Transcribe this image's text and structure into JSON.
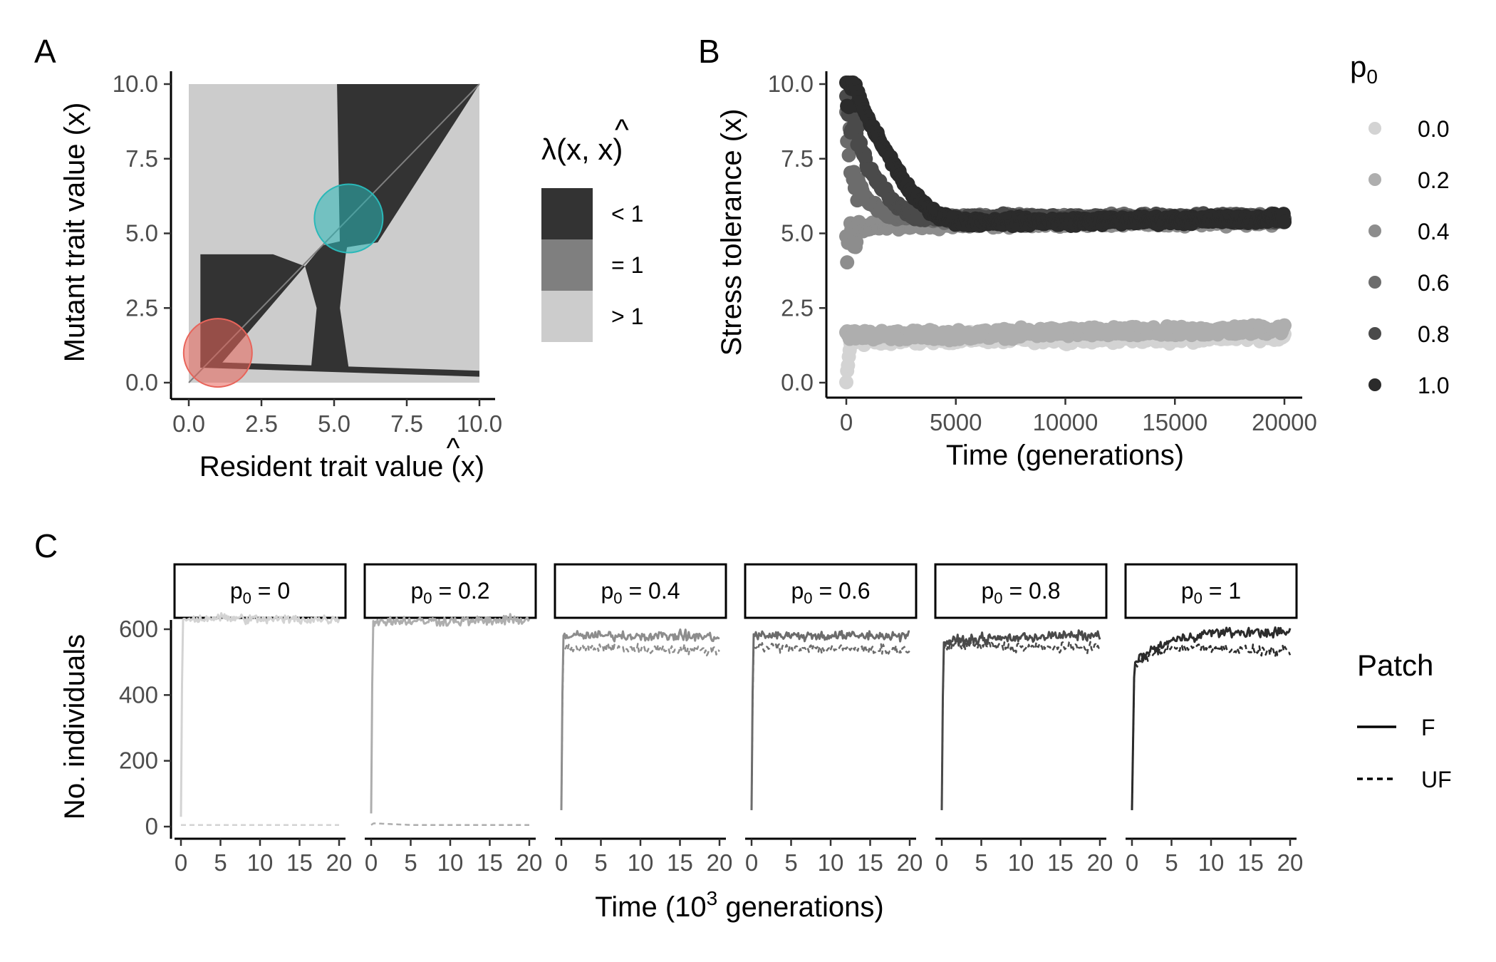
{
  "colors": {
    "p0": [
      "#d3d3d3",
      "#aeaeae",
      "#8d8d8d",
      "#6c6c6c",
      "#4a4a4a",
      "#2b2b2b"
    ],
    "pip": {
      "lt1": "#333333",
      "eq1": "#7f7f7f",
      "gt1": "#cccccc"
    },
    "red_circle": "#e8645a",
    "cyan_circle": "#2ab8b8",
    "axis": "#000000",
    "tick_text": "#4d4d4d"
  },
  "panels": {
    "a": "A",
    "b": "B",
    "c": "C"
  },
  "panel_a": {
    "xlabel_pre": "Resident trait value (",
    "xlabel_var": "x",
    "xlabel_hat": "^",
    "xlabel_post": ")",
    "ylabel": "Mutant trait value (x)",
    "xticks": [
      "0.0",
      "2.5",
      "5.0",
      "7.5",
      "10.0"
    ],
    "yticks": [
      "0.0",
      "2.5",
      "5.0",
      "7.5",
      "10.0"
    ],
    "legend": {
      "title_pre": "λ(x, ",
      "title_var": "x",
      "title_hat": "^",
      "title_post": ")",
      "items": [
        "< 1",
        "= 1",
        "> 1"
      ]
    }
  },
  "panel_b": {
    "xlabel": "Time (generations)",
    "ylabel": "Stress tolerance (x)",
    "xticks": [
      "0",
      "5000",
      "10000",
      "15000",
      "20000"
    ],
    "yticks": [
      "0.0",
      "2.5",
      "5.0",
      "7.5",
      "10.0"
    ],
    "legend": {
      "title_main": "p",
      "title_sub": "0",
      "items": [
        "0.0",
        "0.2",
        "0.4",
        "0.6",
        "0.8",
        "1.0"
      ]
    }
  },
  "panel_c": {
    "xlabel_pre": "Time (10",
    "xlabel_sup": "3",
    "xlabel_post": " generations)",
    "ylabel": "No. individuals",
    "xticks": [
      "0",
      "5",
      "10",
      "15",
      "20"
    ],
    "yticks": [
      "0",
      "200",
      "400",
      "600"
    ],
    "facets": [
      {
        "main": "p",
        "sub": "0",
        "rest": " = 0"
      },
      {
        "main": "p",
        "sub": "0",
        "rest": " = 0.2"
      },
      {
        "main": "p",
        "sub": "0",
        "rest": " = 0.4"
      },
      {
        "main": "p",
        "sub": "0",
        "rest": " = 0.6"
      },
      {
        "main": "p",
        "sub": "0",
        "rest": " = 0.8"
      },
      {
        "main": "p",
        "sub": "0",
        "rest": " = 1"
      }
    ],
    "legend": {
      "title": "Patch",
      "items": [
        "F",
        "UF"
      ]
    }
  },
  "chart_data": [
    {
      "type": "heatmap",
      "panel": "A",
      "xlabel": "Resident trait value (x̂)",
      "ylabel": "Mutant trait value (x)",
      "xlim": [
        0,
        10
      ],
      "ylim": [
        0,
        10
      ],
      "legend_title": "λ(x, x̂)",
      "classes": [
        "< 1",
        "= 1",
        "> 1"
      ],
      "regions_lt1": [
        {
          "x": [
            0.4,
            3.0
          ],
          "y": [
            0.2,
            4.3
          ],
          "note": "lower-left wedge around diagonal"
        },
        {
          "x": [
            5.2,
            10.0
          ],
          "y": [
            5.0,
            10.0
          ],
          "note": "upper-right wedge around diagonal"
        },
        {
          "x": [
            4.2,
            5.6
          ],
          "y": [
            0.2,
            4.6
          ],
          "note": "vertical stem"
        },
        {
          "x": [
            0.4,
            10.0
          ],
          "y": [
            0.2,
            0.5
          ],
          "note": "bottom strip"
        }
      ],
      "markers": [
        {
          "x": 1.0,
          "y": 1.0,
          "color": "red"
        },
        {
          "x": 5.5,
          "y": 5.5,
          "color": "cyan"
        }
      ]
    },
    {
      "type": "scatter",
      "panel": "B",
      "xlabel": "Time (generations)",
      "ylabel": "Stress tolerance (x)",
      "xlim": [
        0,
        20000
      ],
      "ylim": [
        0,
        10
      ],
      "legend_title": "p0",
      "series": [
        {
          "name": "0.0",
          "x": [
            0,
            200,
            1000,
            5000,
            10000,
            15000,
            20000
          ],
          "y": [
            0.0,
            1.4,
            1.4,
            1.5,
            1.5,
            1.5,
            1.6
          ]
        },
        {
          "name": "0.2",
          "x": [
            0,
            200,
            1000,
            5000,
            10000,
            15000,
            20000
          ],
          "y": [
            1.7,
            1.6,
            1.6,
            1.6,
            1.7,
            1.7,
            1.8
          ]
        },
        {
          "name": "0.4",
          "x": [
            0,
            200,
            1000,
            2000,
            5000,
            10000,
            20000
          ],
          "y": [
            4.5,
            5.0,
            5.2,
            5.3,
            5.3,
            5.4,
            5.4
          ]
        },
        {
          "name": "0.6",
          "x": [
            0,
            500,
            1000,
            2000,
            5000,
            10000,
            20000
          ],
          "y": [
            8.5,
            6.8,
            6.0,
            5.6,
            5.5,
            5.5,
            5.5
          ]
        },
        {
          "name": "0.8",
          "x": [
            0,
            500,
            1000,
            2000,
            3000,
            5000,
            20000
          ],
          "y": [
            9.5,
            8.2,
            7.2,
            6.2,
            5.6,
            5.5,
            5.5
          ]
        },
        {
          "name": "1.0",
          "x": [
            0,
            500,
            1000,
            2000,
            3000,
            4000,
            5000,
            10000,
            20000
          ],
          "y": [
            10.0,
            9.7,
            8.8,
            7.5,
            6.3,
            5.7,
            5.4,
            5.4,
            5.5
          ]
        }
      ]
    },
    {
      "type": "line",
      "panel": "C",
      "xlabel": "Time (10^3 generations)",
      "ylabel": "No. individuals",
      "xlim": [
        0,
        20
      ],
      "ylim": [
        0,
        720
      ],
      "facets": [
        "p0 = 0",
        "p0 = 0.2",
        "p0 = 0.4",
        "p0 = 0.6",
        "p0 = 0.8",
        "p0 = 1"
      ],
      "series": [
        {
          "facet": "p0 = 0",
          "name": "F",
          "x": [
            0,
            0.2,
            5,
            10,
            15,
            20
          ],
          "y": [
            30,
            630,
            635,
            630,
            630,
            630
          ]
        },
        {
          "facet": "p0 = 0",
          "name": "UF",
          "x": [
            0,
            5,
            10,
            15,
            20
          ],
          "y": [
            5,
            5,
            5,
            5,
            5
          ]
        },
        {
          "facet": "p0 = 0.2",
          "name": "F",
          "x": [
            0,
            0.2,
            5,
            10,
            15,
            20
          ],
          "y": [
            40,
            625,
            625,
            625,
            625,
            630
          ]
        },
        {
          "facet": "p0 = 0.2",
          "name": "UF",
          "x": [
            0,
            0.3,
            5,
            10,
            15,
            20
          ],
          "y": [
            5,
            10,
            5,
            5,
            5,
            5
          ]
        },
        {
          "facet": "p0 = 0.4",
          "name": "F",
          "x": [
            0,
            0.2,
            5,
            10,
            15,
            20
          ],
          "y": [
            50,
            580,
            580,
            580,
            580,
            575
          ]
        },
        {
          "facet": "p0 = 0.4",
          "name": "UF",
          "x": [
            0,
            0.2,
            5,
            10,
            15,
            20
          ],
          "y": [
            50,
            540,
            545,
            540,
            540,
            535
          ]
        },
        {
          "facet": "p0 = 0.6",
          "name": "F",
          "x": [
            0,
            0.2,
            5,
            10,
            15,
            20
          ],
          "y": [
            50,
            585,
            580,
            580,
            580,
            580
          ]
        },
        {
          "facet": "p0 = 0.6",
          "name": "UF",
          "x": [
            0,
            0.2,
            5,
            10,
            15,
            20
          ],
          "y": [
            50,
            545,
            545,
            540,
            540,
            535
          ]
        },
        {
          "facet": "p0 = 0.8",
          "name": "F",
          "x": [
            0,
            0.2,
            5,
            10,
            15,
            20
          ],
          "y": [
            50,
            560,
            570,
            575,
            580,
            580
          ]
        },
        {
          "facet": "p0 = 0.8",
          "name": "UF",
          "x": [
            0,
            0.2,
            5,
            10,
            15,
            20
          ],
          "y": [
            50,
            550,
            550,
            545,
            545,
            545
          ]
        },
        {
          "facet": "p0 = 1",
          "name": "F",
          "x": [
            0,
            0.3,
            2,
            5,
            10,
            15,
            20
          ],
          "y": [
            50,
            500,
            530,
            565,
            590,
            590,
            590
          ]
        },
        {
          "facet": "p0 = 1",
          "name": "UF",
          "x": [
            0,
            0.3,
            2,
            5,
            10,
            15,
            20
          ],
          "y": [
            50,
            490,
            515,
            545,
            545,
            535,
            530
          ]
        }
      ]
    }
  ]
}
